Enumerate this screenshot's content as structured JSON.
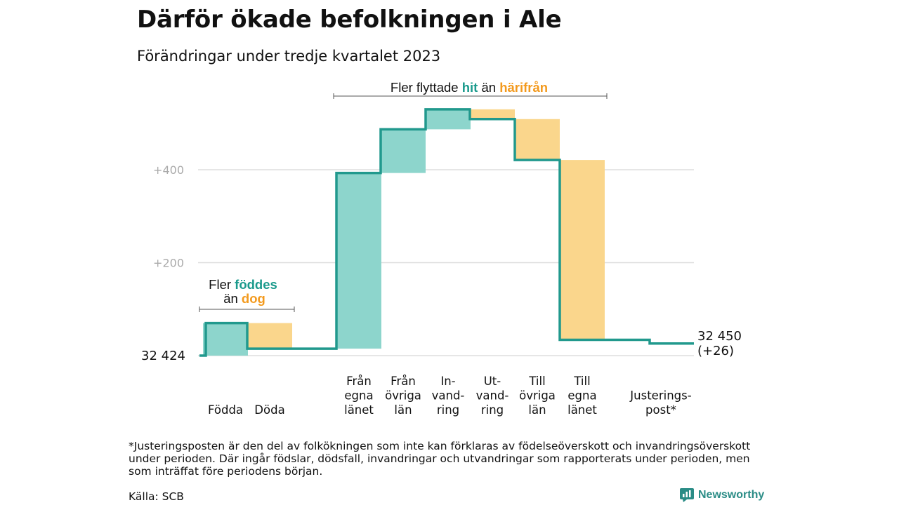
{
  "title": "Därför ökade befolkningen i Ale",
  "subtitle": "Förändringar under tredje kvartalet 2023",
  "footnote": "*Justeringsposten är den del av folkökningen som inte kan förklaras av födelseöverskott och invandringsöverskott under perioden. Där ingår födslar, dödsfall, invandringar och utvandringar som rapporterats under perioden, men som inträffat före periodens början.",
  "source": "Källa: SCB",
  "brand": "Newsworthy",
  "colors": {
    "increase": "#8dd5cc",
    "decrease": "#fad68c",
    "line": "#21998d",
    "teal_text": "#1a9a8c",
    "orange_text": "#f39a1e",
    "grid": "#dddddd",
    "tick": "#aaaaaa"
  },
  "annotations": {
    "births": {
      "line1_pre": "Fler ",
      "line1_hl": "föddes",
      "line2_pre": "än ",
      "line2_hl": "dog"
    },
    "migration": {
      "pre": "Fler flyttade ",
      "hl1": "hit",
      "mid": " än ",
      "hl2": "härifrån"
    }
  },
  "chart_data": {
    "type": "waterfall",
    "start_label": "32  424",
    "end_label": [
      "32 450",
      "(+26)"
    ],
    "yticks": [
      {
        "value": 400,
        "label": "+400"
      },
      {
        "value": 200,
        "label": "+200"
      }
    ],
    "steps": [
      {
        "label": [
          "Födda"
        ],
        "change": 70,
        "kind": "increase"
      },
      {
        "label": [
          "Döda"
        ],
        "change": -55,
        "kind": "decrease"
      },
      {
        "label": [
          "Från",
          "egna",
          "länet"
        ],
        "change": 378,
        "kind": "increase"
      },
      {
        "label": [
          "Från",
          "övriga",
          "län"
        ],
        "change": 94,
        "kind": "increase"
      },
      {
        "label": [
          "In-",
          "vand-",
          "ring"
        ],
        "change": 43,
        "kind": "increase"
      },
      {
        "label": [
          "Ut-",
          "vand-",
          "ring"
        ],
        "change": -21,
        "kind": "decrease"
      },
      {
        "label": [
          "Till",
          "övriga",
          "län"
        ],
        "change": -88,
        "kind": "decrease"
      },
      {
        "label": [
          "Till",
          "egna",
          "länet"
        ],
        "change": -387,
        "kind": "decrease"
      },
      {
        "label": [
          "Justerings-",
          "post*"
        ],
        "change": -8,
        "kind": "adjustment"
      }
    ]
  }
}
